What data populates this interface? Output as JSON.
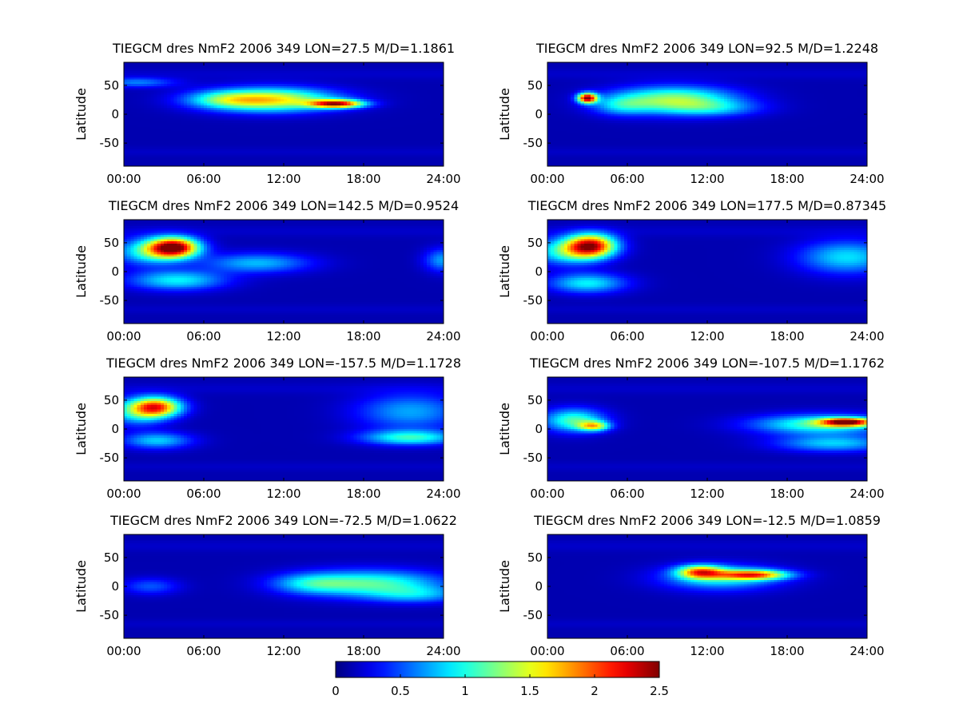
{
  "chart_data": {
    "type": "heatmap",
    "panels": [
      {
        "title": "TIEGCM dres NmF2 2006 349 LON=27.5 M/D=1.1861",
        "ylabel": "Latitude",
        "x_ticks": [
          "00:00",
          "06:00",
          "12:00",
          "18:00",
          "24:00"
        ],
        "y_ticks": [
          50,
          0,
          -50
        ],
        "blobs": [
          {
            "x": 11,
            "y": 25,
            "sx": 3.4,
            "sy": 14,
            "v": 1.5
          },
          {
            "x": 16,
            "y": 18,
            "sx": 1.4,
            "sy": 5,
            "v": 2.0
          },
          {
            "x": 7.5,
            "y": 25,
            "sx": 2.0,
            "sy": 10,
            "v": 0.5
          },
          {
            "x": 1.0,
            "y": 55,
            "sx": 2.0,
            "sy": 6,
            "v": 0.5
          }
        ]
      },
      {
        "title": "TIEGCM dres NmF2 2006 349 LON=92.5 M/D=1.2248",
        "ylabel": "Latitude",
        "x_ticks": [
          "00:00",
          "06:00",
          "12:00",
          "18:00",
          "24:00"
        ],
        "y_ticks": [
          50,
          0,
          -50
        ],
        "blobs": [
          {
            "x": 3.0,
            "y": 28,
            "sx": 0.5,
            "sy": 6,
            "v": 2.3
          },
          {
            "x": 9.5,
            "y": 25,
            "sx": 3.2,
            "sy": 16,
            "v": 1.2
          },
          {
            "x": 5.5,
            "y": 15,
            "sx": 1.5,
            "sy": 12,
            "v": 0.5
          },
          {
            "x": 12.5,
            "y": 10,
            "sx": 2.5,
            "sy": 10,
            "v": 0.45
          }
        ]
      },
      {
        "title": "TIEGCM dres NmF2 2006 349 LON=142.5 M/D=0.9524",
        "ylabel": "Latitude",
        "x_ticks": [
          "00:00",
          "06:00",
          "12:00",
          "18:00",
          "24:00"
        ],
        "y_ticks": [
          50,
          0,
          -50
        ],
        "blobs": [
          {
            "x": 3.8,
            "y": 42,
            "sx": 1.3,
            "sy": 12,
            "v": 2.2
          },
          {
            "x": 2.0,
            "y": 35,
            "sx": 1.8,
            "sy": 16,
            "v": 0.9
          },
          {
            "x": 4.0,
            "y": -15,
            "sx": 2.5,
            "sy": 12,
            "v": 0.8
          },
          {
            "x": 10.0,
            "y": 15,
            "sx": 2.8,
            "sy": 12,
            "v": 0.65
          },
          {
            "x": 24.0,
            "y": 20,
            "sx": 1.0,
            "sy": 14,
            "v": 0.6
          }
        ]
      },
      {
        "title": "TIEGCM dres NmF2 2006 349 LON=177.5 M/D=0.87345",
        "ylabel": "Latitude",
        "x_ticks": [
          "00:00",
          "06:00",
          "12:00",
          "18:00",
          "24:00"
        ],
        "y_ticks": [
          50,
          0,
          -50
        ],
        "blobs": [
          {
            "x": 3.3,
            "y": 45,
            "sx": 1.3,
            "sy": 14,
            "v": 2.0
          },
          {
            "x": 1.5,
            "y": 35,
            "sx": 1.8,
            "sy": 16,
            "v": 0.9
          },
          {
            "x": 3.0,
            "y": -20,
            "sx": 2.0,
            "sy": 12,
            "v": 0.8
          },
          {
            "x": 22.5,
            "y": 25,
            "sx": 2.5,
            "sy": 20,
            "v": 0.75
          }
        ]
      },
      {
        "title": "TIEGCM dres NmF2 2006 349 LON=-157.5 M/D=1.1728",
        "ylabel": "Latitude",
        "x_ticks": [
          "00:00",
          "06:00",
          "12:00",
          "18:00",
          "24:00"
        ],
        "y_ticks": [
          50,
          0,
          -50
        ],
        "blobs": [
          {
            "x": 2.5,
            "y": 38,
            "sx": 1.3,
            "sy": 12,
            "v": 1.7
          },
          {
            "x": 1.0,
            "y": 30,
            "sx": 1.5,
            "sy": 16,
            "v": 0.8
          },
          {
            "x": 2.5,
            "y": -20,
            "sx": 1.8,
            "sy": 10,
            "v": 0.7
          },
          {
            "x": 21.5,
            "y": -15,
            "sx": 2.5,
            "sy": 9,
            "v": 0.9
          },
          {
            "x": 21.5,
            "y": 30,
            "sx": 2.8,
            "sy": 22,
            "v": 0.6
          }
        ]
      },
      {
        "title": "TIEGCM dres NmF2 2006 349 LON=-107.5 M/D=1.1762",
        "ylabel": "Latitude",
        "x_ticks": [
          "00:00",
          "06:00",
          "12:00",
          "18:00",
          "24:00"
        ],
        "y_ticks": [
          50,
          0,
          -50
        ],
        "blobs": [
          {
            "x": 2.0,
            "y": 15,
            "sx": 1.6,
            "sy": 14,
            "v": 1.0
          },
          {
            "x": 3.5,
            "y": 5,
            "sx": 0.8,
            "sy": 6,
            "v": 1.2
          },
          {
            "x": 22.5,
            "y": 12,
            "sx": 1.4,
            "sy": 5,
            "v": 1.9
          },
          {
            "x": 20.5,
            "y": 8,
            "sx": 3.5,
            "sy": 12,
            "v": 1.0
          },
          {
            "x": 21.5,
            "y": -25,
            "sx": 3.0,
            "sy": 10,
            "v": 0.7
          }
        ]
      },
      {
        "title": "TIEGCM dres NmF2 2006 349 LON=-72.5 M/D=1.0622",
        "ylabel": "Latitude",
        "x_ticks": [
          "00:00",
          "06:00",
          "12:00",
          "18:00",
          "24:00"
        ],
        "y_ticks": [
          50,
          0,
          -50
        ],
        "blobs": [
          {
            "x": 18.5,
            "y": 5,
            "sx": 3.8,
            "sy": 16,
            "v": 1.0
          },
          {
            "x": 14.0,
            "y": 5,
            "sx": 2.0,
            "sy": 12,
            "v": 0.5
          },
          {
            "x": 2.0,
            "y": 0,
            "sx": 1.5,
            "sy": 10,
            "v": 0.4
          },
          {
            "x": 22.0,
            "y": -15,
            "sx": 2.5,
            "sy": 10,
            "v": 0.5
          }
        ]
      },
      {
        "title": "TIEGCM dres NmF2 2006 349 LON=-12.5 M/D=1.0859",
        "ylabel": "Latitude",
        "x_ticks": [
          "00:00",
          "06:00",
          "12:00",
          "18:00",
          "24:00"
        ],
        "y_ticks": [
          50,
          0,
          -50
        ],
        "blobs": [
          {
            "x": 11.5,
            "y": 25,
            "sx": 1.2,
            "sy": 8,
            "v": 1.5
          },
          {
            "x": 15.5,
            "y": 20,
            "sx": 1.8,
            "sy": 6,
            "v": 1.6
          },
          {
            "x": 13.0,
            "y": 15,
            "sx": 3.0,
            "sy": 15,
            "v": 0.8
          }
        ]
      }
    ],
    "x_range_hours": [
      0,
      24
    ],
    "y_range": [
      -90,
      90
    ],
    "colorbar": {
      "colormap": "jet",
      "range": [
        0,
        2.5
      ],
      "ticks": [
        "0",
        "0.5",
        "1",
        "1.5",
        "2",
        "2.5"
      ]
    }
  }
}
